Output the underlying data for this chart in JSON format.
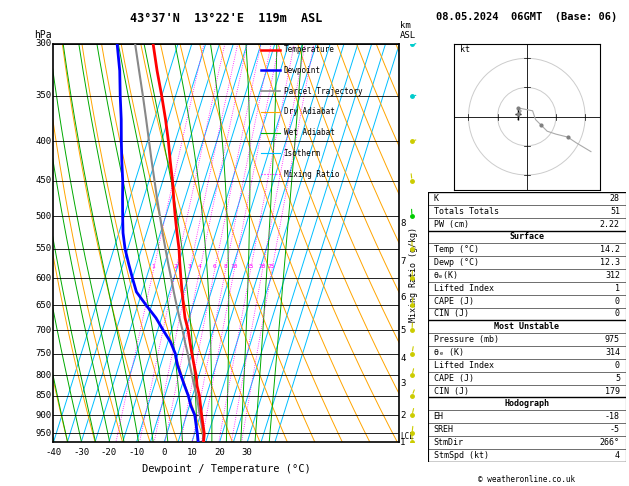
{
  "title_left": "43°37'N  13°22'E  119m  ASL",
  "title_right": "08.05.2024  06GMT  (Base: 06)",
  "xlabel": "Dewpoint / Temperature (°C)",
  "ylabel_left": "hPa",
  "pressure_ticks": [
    300,
    350,
    400,
    450,
    500,
    550,
    600,
    650,
    700,
    750,
    800,
    850,
    900,
    950
  ],
  "temp_ticks": [
    -40,
    -30,
    -20,
    -10,
    0,
    10,
    20,
    30
  ],
  "isotherm_temps": [
    -40,
    -35,
    -30,
    -25,
    -20,
    -15,
    -10,
    -5,
    0,
    5,
    10,
    15,
    20,
    25,
    30,
    35,
    40
  ],
  "isotherm_color": "#00BFFF",
  "dry_adiabat_color": "#FFA500",
  "wet_adiabat_color": "#00AA00",
  "mixing_ratio_color": "#FF00FF",
  "temp_profile_color": "#FF0000",
  "dewp_profile_color": "#0000FF",
  "parcel_color": "#888888",
  "km_ticks": [
    1,
    2,
    3,
    4,
    5,
    6,
    7,
    8
  ],
  "km_pressures": [
    977,
    900,
    820,
    760,
    700,
    635,
    572,
    510
  ],
  "mixing_ratio_values": [
    1,
    2,
    3,
    4,
    6,
    8,
    10,
    15,
    20,
    25
  ],
  "pressure_profile": [
    975,
    950,
    925,
    900,
    875,
    850,
    825,
    800,
    775,
    750,
    725,
    700,
    675,
    650,
    625,
    600,
    575,
    550,
    525,
    500,
    475,
    450,
    425,
    400,
    375,
    350,
    325,
    300
  ],
  "temp_profile": [
    14.2,
    13.5,
    12.0,
    10.5,
    9.0,
    7.5,
    5.5,
    4.0,
    2.0,
    0.0,
    -2.0,
    -4.0,
    -6.5,
    -8.5,
    -10.5,
    -12.5,
    -14.5,
    -16.5,
    -19.0,
    -21.5,
    -24.0,
    -26.5,
    -29.5,
    -32.5,
    -36.0,
    -40.0,
    -44.5,
    -49.0
  ],
  "dewp_profile": [
    12.3,
    11.0,
    9.5,
    8.0,
    5.5,
    3.5,
    1.0,
    -1.5,
    -4.0,
    -6.0,
    -9.0,
    -13.0,
    -17.0,
    -22.0,
    -27.0,
    -30.0,
    -33.0,
    -36.0,
    -38.5,
    -40.5,
    -42.5,
    -44.5,
    -47.0,
    -49.5,
    -52.0,
    -55.0,
    -58.0,
    -62.0
  ],
  "parcel_profile": [
    14.2,
    13.0,
    11.5,
    9.8,
    8.2,
    6.5,
    4.5,
    2.5,
    0.5,
    -1.5,
    -3.8,
    -6.0,
    -8.5,
    -11.0,
    -13.5,
    -16.0,
    -18.7,
    -21.4,
    -24.2,
    -27.0,
    -30.0,
    -33.0,
    -36.2,
    -39.5,
    -43.0,
    -46.8,
    -51.0,
    -55.5
  ],
  "lcl_pressure": 958,
  "p_min": 300,
  "p_max": 975,
  "t_min": -40,
  "t_max": 40,
  "skew": 45.0,
  "stats": {
    "K": "28",
    "Totals_Totals": "51",
    "PW_cm": "2.22",
    "Surface_Temp": "14.2",
    "Surface_Dewp": "12.3",
    "Surface_theta_e": "312",
    "Surface_Lifted_Index": "1",
    "Surface_CAPE": "0",
    "Surface_CIN": "0",
    "MU_Pressure": "975",
    "MU_theta_e": "314",
    "MU_Lifted_Index": "0",
    "MU_CAPE": "5",
    "MU_CIN": "179",
    "EH": "-18",
    "SREH": "-5",
    "StmDir": "266°",
    "StmSpd": "4"
  },
  "copyright": "© weatheronline.co.uk"
}
